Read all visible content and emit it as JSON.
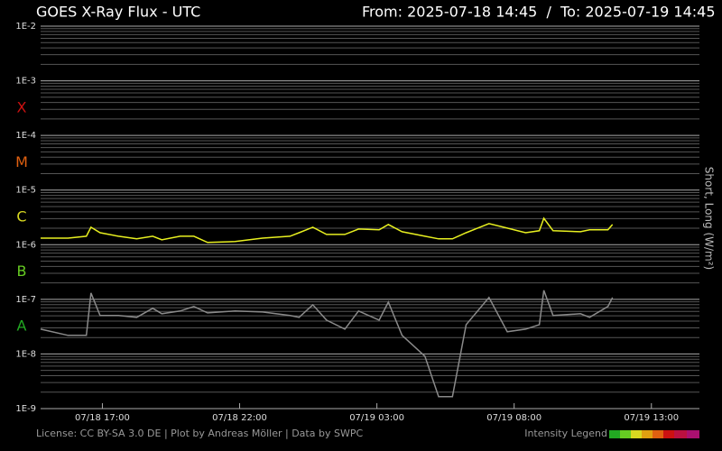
{
  "chart_data": {
    "type": "line",
    "title": "GOES X-Ray Flux - UTC",
    "subtitle": "From: 2025-07-18 14:45  /  To: 2025-07-19 14:45",
    "ylabel": "Short, Long (W/m²)",
    "footer": "License: CC BY-SA 3.0 DE | Plot by Andreas Möller | Data by SWPC",
    "legend_title": "Intensity Legend",
    "log_scale": true,
    "grid": true,
    "minor_grid": true,
    "ylim": [
      1e-09,
      0.01
    ],
    "yticks": [
      {
        "value": 0.01,
        "label": "1E-2"
      },
      {
        "value": 0.001,
        "label": "1E-3"
      },
      {
        "value": 0.0001,
        "label": "1E-4"
      },
      {
        "value": 1e-05,
        "label": "1E-5"
      },
      {
        "value": 1e-06,
        "label": "1E-6"
      },
      {
        "value": 1e-07,
        "label": "1E-7"
      },
      {
        "value": 1e-08,
        "label": "1E-8"
      },
      {
        "value": 1e-09,
        "label": "1E-9"
      }
    ],
    "xlim": [
      "2025-07-18 14:45",
      "2025-07-19 14:45"
    ],
    "xticks": [
      {
        "value": "2025-07-18 17:00",
        "label": "07/18 17:00"
      },
      {
        "value": "2025-07-18 22:00",
        "label": "07/18 22:00"
      },
      {
        "value": "2025-07-19 03:00",
        "label": "07/19 03:00"
      },
      {
        "value": "2025-07-19 08:00",
        "label": "07/19 08:00"
      },
      {
        "value": "2025-07-19 13:00",
        "label": "07/19 13:00"
      }
    ],
    "flare_classes": [
      {
        "label": "X",
        "color": "#cc1111"
      },
      {
        "label": "M",
        "color": "#e06010"
      },
      {
        "label": "C",
        "color": "#d8d820"
      },
      {
        "label": "B",
        "color": "#66cc22"
      },
      {
        "label": "A",
        "color": "#22aa22"
      }
    ],
    "x": [
      "2025-07-18 14:45",
      "2025-07-18 15:45",
      "2025-07-18 16:25",
      "2025-07-18 16:35",
      "2025-07-18 16:55",
      "2025-07-18 17:35",
      "2025-07-18 18:15",
      "2025-07-18 18:50",
      "2025-07-18 19:10",
      "2025-07-18 19:50",
      "2025-07-18 20:20",
      "2025-07-18 20:50",
      "2025-07-18 21:50",
      "2025-07-18 22:50",
      "2025-07-18 23:50",
      "2025-07-19 00:10",
      "2025-07-19 00:40",
      "2025-07-19 01:10",
      "2025-07-19 01:50",
      "2025-07-19 02:20",
      "2025-07-19 03:05",
      "2025-07-19 03:25",
      "2025-07-19 03:55",
      "2025-07-19 04:45",
      "2025-07-19 05:15",
      "2025-07-19 05:45",
      "2025-07-19 06:15",
      "2025-07-19 07:05",
      "2025-07-19 07:45",
      "2025-07-19 08:25",
      "2025-07-19 08:55",
      "2025-07-19 09:05",
      "2025-07-19 09:25",
      "2025-07-19 10:25",
      "2025-07-19 10:45",
      "2025-07-19 11:25",
      "2025-07-19 11:35"
    ],
    "series": [
      {
        "name": "Short",
        "color": "#8a8a8a",
        "values": [
          2.85e-08,
          2.19e-08,
          2.19e-08,
          1.31e-07,
          5.05e-08,
          5.05e-08,
          4.68e-08,
          6.84e-08,
          5.45e-08,
          6.11e-08,
          7.38e-08,
          5.65e-08,
          6.11e-08,
          5.87e-08,
          5.05e-08,
          4.68e-08,
          7.96e-08,
          4.17e-08,
          2.85e-08,
          6.11e-08,
          4.17e-08,
          8.91e-08,
          2.19e-08,
          9.12e-09,
          1.65e-09,
          1.65e-09,
          3.45e-08,
          1.08e-07,
          2.55e-08,
          2.85e-08,
          3.45e-08,
          1.46e-07,
          5.05e-08,
          5.45e-08,
          4.68e-08,
          7.38e-08,
          1.08e-07
        ]
      },
      {
        "name": "Long",
        "color": "#e8f020",
        "values": [
          1.32e-06,
          1.32e-06,
          1.43e-06,
          2.09e-06,
          1.66e-06,
          1.43e-06,
          1.28e-06,
          1.43e-06,
          1.23e-06,
          1.43e-06,
          1.43e-06,
          1.1e-06,
          1.14e-06,
          1.32e-06,
          1.43e-06,
          1.66e-06,
          2.09e-06,
          1.54e-06,
          1.54e-06,
          1.94e-06,
          1.87e-06,
          2.34e-06,
          1.73e-06,
          1.43e-06,
          1.28e-06,
          1.28e-06,
          1.66e-06,
          2.43e-06,
          2.01e-06,
          1.66e-06,
          1.8e-06,
          3.05e-06,
          1.8e-06,
          1.73e-06,
          1.87e-06,
          1.87e-06,
          2.34e-06
        ]
      }
    ]
  }
}
